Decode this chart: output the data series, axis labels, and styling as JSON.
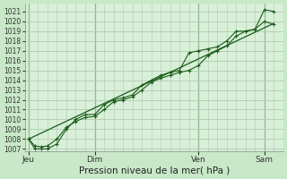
{
  "background_color": "#c8e8c8",
  "plot_bg_color": "#d8efd8",
  "grid_color": "#b0ccb0",
  "line_color": "#1a5c1a",
  "title": "Pression niveau de la mer( hPa )",
  "ylabel_ticks": [
    1007,
    1008,
    1009,
    1010,
    1011,
    1012,
    1013,
    1014,
    1015,
    1016,
    1017,
    1018,
    1019,
    1020,
    1021
  ],
  "ylim": [
    1006.8,
    1021.8
  ],
  "day_labels": [
    "Jeu",
    "Dim",
    "Ven",
    "Sam"
  ],
  "day_positions": [
    0,
    3.5,
    9.0,
    12.5
  ],
  "vline_positions": [
    0,
    3.5,
    9.0,
    12.5
  ],
  "series1_x": [
    0,
    0.33,
    0.67,
    1.0,
    1.5,
    2.0,
    2.5,
    3.0,
    3.5,
    4.0,
    4.5,
    5.0,
    5.5,
    6.0,
    6.5,
    7.0,
    7.5,
    8.0,
    8.5,
    9.0,
    9.5,
    10.0,
    10.5,
    11.0,
    11.5,
    12.0,
    12.5,
    13.0
  ],
  "series1_y": [
    1008.0,
    1007.0,
    1007.0,
    1007.0,
    1007.5,
    1009.0,
    1010.0,
    1010.5,
    1010.5,
    1011.5,
    1012.0,
    1012.2,
    1012.5,
    1013.5,
    1014.0,
    1014.5,
    1014.8,
    1015.0,
    1016.8,
    1017.0,
    1017.2,
    1017.4,
    1018.0,
    1019.0,
    1019.0,
    1019.2,
    1021.2,
    1021.0
  ],
  "series2_x": [
    0,
    0.33,
    0.67,
    1.0,
    1.5,
    2.0,
    2.5,
    3.0,
    3.5,
    4.0,
    4.5,
    5.0,
    5.5,
    6.0,
    6.5,
    7.0,
    7.5,
    8.0,
    8.5,
    9.0,
    9.5,
    10.0,
    10.5,
    11.0,
    11.5,
    12.0,
    12.5,
    13.0
  ],
  "series2_y": [
    1008.0,
    1007.3,
    1007.2,
    1007.3,
    1008.0,
    1009.2,
    1009.8,
    1010.2,
    1010.3,
    1011.0,
    1011.8,
    1012.0,
    1012.3,
    1013.0,
    1013.8,
    1014.2,
    1014.5,
    1014.8,
    1015.0,
    1015.5,
    1016.5,
    1017.0,
    1017.5,
    1018.5,
    1019.0,
    1019.2,
    1020.0,
    1019.7
  ],
  "trend_x": [
    0,
    13.0
  ],
  "trend_y": [
    1008.0,
    1019.8
  ],
  "xlim": [
    -0.2,
    13.5
  ],
  "title_fontsize": 7.5,
  "tick_fontsize": 5.5,
  "xlabel_fontsize": 6.5
}
